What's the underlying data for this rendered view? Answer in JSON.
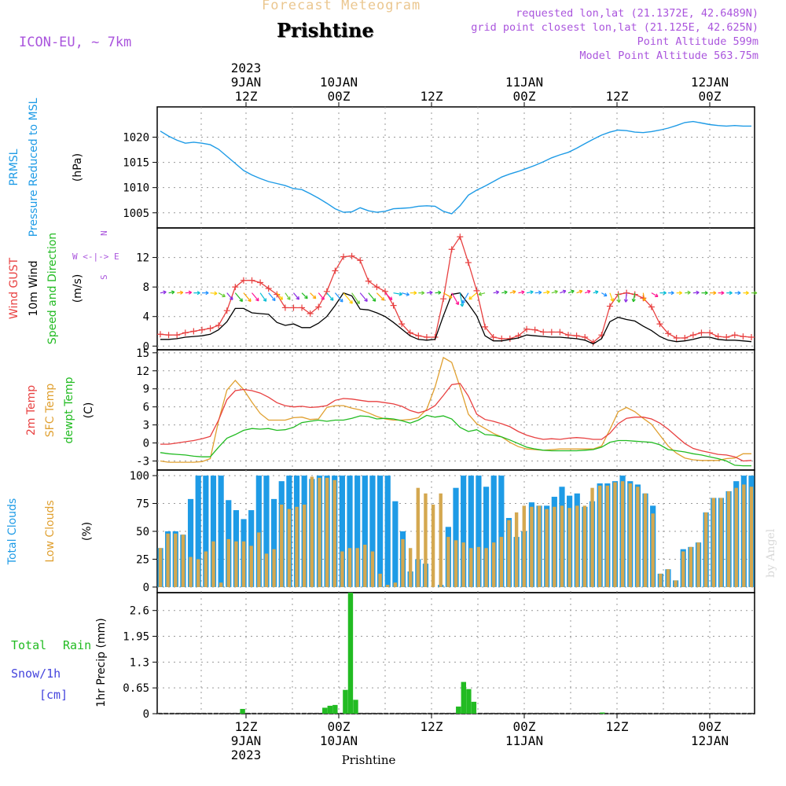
{
  "header": {
    "subtitle": "Forecast Meteogram",
    "location": "Prishtine",
    "model": "ICON-EU, ~ 7km",
    "requested": "requested lon,lat (21.1372E, 42.6489N)",
    "grid_point": "grid point closest lon,lat (21.125E, 42.625N)",
    "point_altitude": "Point Altitude 599m",
    "model_altitude": "Model Point Altitude 563.75m",
    "footer": "Prishtine",
    "watermark": "by Angel"
  },
  "colors": {
    "pressure": "#1e9be6",
    "gust": "#e84040",
    "wind": "#000000",
    "direction": "#22bb22",
    "temp2m": "#e84040",
    "sfc": "#e0a030",
    "dewpt": "#22bb22",
    "total_clouds": "#1e9be6",
    "low_clouds": "#d4a850",
    "precip": "#22bb22",
    "snow_label": "#4444dd",
    "header_accent": "#aa55dd",
    "subtitle": "#ebc790"
  },
  "time_axis": {
    "top_labels": [
      {
        "lines": [
          "2023",
          "9JAN",
          "12Z"
        ]
      },
      {
        "lines": [
          "10JAN",
          "00Z"
        ]
      },
      {
        "lines": [
          "12Z"
        ]
      },
      {
        "lines": [
          "11JAN",
          "00Z"
        ]
      },
      {
        "lines": [
          "12Z"
        ]
      },
      {
        "lines": [
          "12JAN",
          "00Z"
        ]
      }
    ],
    "bottom_labels": [
      {
        "lines": [
          "12Z",
          "9JAN",
          "2023"
        ]
      },
      {
        "lines": [
          "00Z",
          "10JAN"
        ]
      },
      {
        "lines": [
          "12Z"
        ]
      },
      {
        "lines": [
          "00Z",
          "11JAN"
        ]
      },
      {
        "lines": [
          "12Z"
        ]
      },
      {
        "lines": [
          "00Z",
          "12JAN"
        ]
      }
    ]
  },
  "chart_data": [
    {
      "type": "line",
      "title": "PRMSL Pressure Reduced to MSL",
      "ylabel_lines": [
        "PRMSL",
        "Pressure Reduced to MSL"
      ],
      "unit": "(hPa)",
      "ylim": [
        1002,
        1026
      ],
      "yticks": [
        1005,
        1010,
        1015,
        1020
      ],
      "series": [
        {
          "name": "PRMSL",
          "values": [
            1021.2,
            1020.2,
            1019.4,
            1018.8,
            1019.0,
            1018.8,
            1018.5,
            1017.6,
            1016.2,
            1014.8,
            1013.4,
            1012.5,
            1011.8,
            1011.2,
            1010.8,
            1010.4,
            1009.8,
            1009.6,
            1008.8,
            1007.9,
            1006.9,
            1005.8,
            1005.1,
            1005.2,
            1006.0,
            1005.4,
            1005.1,
            1005.3,
            1005.8,
            1005.9,
            1006.0,
            1006.3,
            1006.4,
            1006.3,
            1005.3,
            1004.8,
            1006.4,
            1008.5,
            1009.5,
            1010.3,
            1011.2,
            1012.1,
            1012.7,
            1013.2,
            1013.8,
            1014.4,
            1015.1,
            1015.9,
            1016.5,
            1017.0,
            1017.8,
            1018.7,
            1019.6,
            1020.4,
            1021.0,
            1021.4,
            1021.3,
            1021.0,
            1020.9,
            1021.1,
            1021.4,
            1021.8,
            1022.3,
            1022.9,
            1023.1,
            1022.8,
            1022.5,
            1022.3,
            1022.2,
            1022.3,
            1022.2,
            1022.2
          ]
        }
      ]
    },
    {
      "type": "line",
      "title": "Wind GUST / 10m Wind Speed and Direction",
      "ylabel_lines": [
        "Wind GUST",
        "10m Wind",
        "Speed and Direction"
      ],
      "unit": "(m/s)",
      "ylim": [
        -0.5,
        16
      ],
      "yticks": [
        0,
        4,
        8,
        12
      ],
      "compass": "N / W <-|-> E / S",
      "series": [
        {
          "name": "Wind GUST",
          "values": [
            1.6,
            1.5,
            1.5,
            1.8,
            2.0,
            2.2,
            2.4,
            2.8,
            4.8,
            8.0,
            8.9,
            8.9,
            8.6,
            7.8,
            7.0,
            5.2,
            5.2,
            5.2,
            4.4,
            5.3,
            7.4,
            10.2,
            12.1,
            12.2,
            11.6,
            8.8,
            8.0,
            7.4,
            5.5,
            3.0,
            1.8,
            1.4,
            1.2,
            1.2,
            6.4,
            13.1,
            14.8,
            11.3,
            7.5,
            2.6,
            1.2,
            1.0,
            1.0,
            1.4,
            2.3,
            2.2,
            1.9,
            1.9,
            1.9,
            1.5,
            1.4,
            1.2,
            0.5,
            1.5,
            5.4,
            7.0,
            7.2,
            7.0,
            6.5,
            5.3,
            3.0,
            1.7,
            1.1,
            1.1,
            1.5,
            1.8,
            1.8,
            1.3,
            1.2,
            1.5,
            1.3,
            1.2
          ]
        },
        {
          "name": "10m Wind",
          "values": [
            0.9,
            0.9,
            1.0,
            1.2,
            1.3,
            1.4,
            1.6,
            2.2,
            3.3,
            5.1,
            5.1,
            4.5,
            4.4,
            4.3,
            3.2,
            2.8,
            3.0,
            2.5,
            2.5,
            3.1,
            4.0,
            5.5,
            7.2,
            6.8,
            5.0,
            4.9,
            4.5,
            4.0,
            3.2,
            2.3,
            1.4,
            0.9,
            0.8,
            0.9,
            4.1,
            7.0,
            7.2,
            5.7,
            4.1,
            1.4,
            0.7,
            0.7,
            0.9,
            1.1,
            1.5,
            1.4,
            1.3,
            1.2,
            1.2,
            1.1,
            1.0,
            0.8,
            0.3,
            1.0,
            3.3,
            3.9,
            3.6,
            3.4,
            2.7,
            2.1,
            1.3,
            0.8,
            0.6,
            0.7,
            0.9,
            1.2,
            1.2,
            0.9,
            0.8,
            0.8,
            0.7,
            0.6
          ]
        }
      ],
      "wind_barbs": {
        "direction_deg": [
          260,
          260,
          265,
          265,
          270,
          270,
          275,
          300,
          320,
          320,
          320,
          320,
          325,
          320,
          320,
          325,
          320,
          315,
          315,
          320,
          320,
          320,
          320,
          325,
          320,
          320,
          315,
          315,
          280,
          285,
          270,
          270,
          265,
          265,
          300,
          330,
          350,
          30,
          50,
          75,
          260,
          260,
          255,
          260,
          260,
          265,
          260,
          255,
          250,
          250,
          250,
          250,
          255,
          300,
          340,
          355,
          5,
          10,
          350,
          300,
          270,
          270,
          270,
          265,
          265,
          270,
          270,
          270,
          270,
          270,
          270,
          270
        ],
        "colors": [
          "#8a2be2",
          "#22bb22",
          "#ffa500",
          "#ff1493",
          "#00bcd4",
          "#1e90ff",
          "#ffcc00",
          "#66cc33"
        ]
      }
    },
    {
      "type": "line",
      "title": "2m Temp / SFC Temp / dewpt Temp",
      "ylabel_lines": [
        "2m Temp",
        "SFC Temp",
        "dewpt Temp"
      ],
      "unit": "(C)",
      "ylim": [
        -4.5,
        15.5
      ],
      "yticks": [
        -3,
        0,
        3,
        6,
        9,
        12,
        15
      ],
      "series": [
        {
          "name": "2m Temp",
          "values": [
            -0.2,
            -0.2,
            0.0,
            0.2,
            0.4,
            0.7,
            1.1,
            3.8,
            7.2,
            8.7,
            8.9,
            8.7,
            8.3,
            7.6,
            6.7,
            6.2,
            6.0,
            6.1,
            5.9,
            6.0,
            6.2,
            7.1,
            7.4,
            7.3,
            7.1,
            6.9,
            6.9,
            6.7,
            6.5,
            6.1,
            5.4,
            5.0,
            5.4,
            6.2,
            7.9,
            9.7,
            9.9,
            7.8,
            4.8,
            3.9,
            3.6,
            3.2,
            2.7,
            1.9,
            1.3,
            0.9,
            0.6,
            0.7,
            0.6,
            0.8,
            0.9,
            0.8,
            0.6,
            0.6,
            1.6,
            3.2,
            4.1,
            4.3,
            4.3,
            4.0,
            3.3,
            2.3,
            1.1,
            -0.1,
            -0.9,
            -1.3,
            -1.6,
            -1.9,
            -2.0,
            -2.3,
            -3.0,
            -2.9
          ]
        },
        {
          "name": "SFC Temp",
          "values": [
            -3.0,
            -3.2,
            -3.2,
            -3.2,
            -3.2,
            -3.1,
            -2.6,
            3.7,
            8.8,
            10.4,
            8.9,
            6.8,
            4.9,
            3.8,
            3.8,
            3.8,
            4.2,
            4.3,
            3.9,
            4.0,
            5.9,
            6.2,
            6.2,
            5.8,
            5.5,
            5.0,
            4.4,
            4.0,
            3.8,
            3.8,
            3.9,
            4.2,
            5.6,
            9.3,
            14.2,
            13.4,
            9.3,
            4.8,
            3.2,
            2.4,
            1.6,
            1.0,
            0.1,
            -0.6,
            -1.0,
            -1.1,
            -1.2,
            -1.1,
            -1.0,
            -1.0,
            -1.0,
            -1.0,
            -1.0,
            -0.5,
            2.2,
            5.2,
            5.9,
            5.2,
            4.1,
            3.1,
            1.3,
            -0.5,
            -1.7,
            -2.5,
            -2.8,
            -2.9,
            -2.9,
            -2.9,
            -2.6,
            -2.5,
            -1.8,
            -1.8
          ]
        },
        {
          "name": "dewpt Temp",
          "values": [
            -1.6,
            -1.8,
            -1.9,
            -2.0,
            -2.2,
            -2.3,
            -2.3,
            -0.7,
            0.8,
            1.4,
            2.1,
            2.4,
            2.3,
            2.4,
            2.1,
            2.2,
            2.6,
            3.4,
            3.6,
            3.8,
            3.6,
            3.8,
            3.8,
            4.1,
            4.5,
            4.4,
            4.0,
            4.1,
            4.0,
            3.7,
            3.3,
            3.8,
            4.6,
            4.3,
            4.5,
            4.0,
            2.6,
            1.9,
            2.2,
            1.4,
            1.3,
            1.0,
            0.5,
            -0.1,
            -0.7,
            -1.0,
            -1.2,
            -1.3,
            -1.3,
            -1.3,
            -1.3,
            -1.2,
            -1.1,
            -0.7,
            0.1,
            0.4,
            0.4,
            0.3,
            0.2,
            0.1,
            -0.3,
            -1.1,
            -1.3,
            -1.5,
            -1.8,
            -2.0,
            -2.3,
            -2.6,
            -3.0,
            -3.7,
            -3.8,
            -3.8
          ]
        }
      ]
    },
    {
      "type": "bar",
      "title": "Total Clouds / Low Clouds",
      "ylabel_lines": [
        "Total Clouds",
        "Low Clouds"
      ],
      "unit": "(%)",
      "ylim": [
        -5,
        105
      ],
      "yticks": [
        0,
        25,
        50,
        75,
        100
      ],
      "series": [
        {
          "name": "Total Clouds",
          "values": [
            35,
            50,
            50,
            47,
            79,
            100,
            100,
            100,
            100,
            78,
            69,
            61,
            69,
            100,
            100,
            79,
            95,
            100,
            100,
            100,
            97,
            100,
            100,
            100,
            100,
            100,
            100,
            100,
            100,
            100,
            100,
            77,
            50,
            14,
            25,
            21,
            0,
            2,
            54,
            89,
            100,
            100,
            100,
            90,
            100,
            100,
            62,
            45,
            50,
            76,
            73,
            73,
            81,
            90,
            82,
            84,
            72,
            77,
            93,
            93,
            95,
            100,
            95,
            92,
            84,
            73,
            12,
            16,
            6,
            34,
            36,
            40,
            67,
            80,
            80,
            86,
            95,
            100,
            100
          ]
        },
        {
          "name": "Low Clouds",
          "values": [
            35,
            48,
            48,
            47,
            27,
            25,
            32,
            41,
            4,
            43,
            41,
            41,
            37,
            49,
            30,
            34,
            74,
            70,
            72,
            74,
            99,
            98,
            98,
            96,
            32,
            35,
            35,
            38,
            32,
            12,
            2,
            4,
            43,
            35,
            89,
            84,
            74,
            84,
            45,
            42,
            40,
            35,
            36,
            35,
            40,
            45,
            60,
            67,
            73,
            72,
            73,
            70,
            72,
            73,
            71,
            73,
            73,
            89,
            91,
            91,
            94,
            95,
            93,
            90,
            84,
            66,
            12,
            16,
            6,
            32,
            36,
            40,
            67,
            80,
            80,
            86,
            89,
            92,
            90
          ]
        }
      ]
    },
    {
      "type": "bar",
      "title": "1hr Precip (mm)",
      "ylabel_lines": [
        "Total Rain",
        "Snow/1h",
        "[cm]"
      ],
      "unit": "1hr Precip (mm)",
      "ylim": [
        0,
        3.05
      ],
      "yticks": [
        0,
        0.65,
        1.3,
        1.95,
        2.6
      ],
      "series": [
        {
          "name": "Total Rain",
          "values": [
            0,
            0,
            0,
            0,
            0,
            0,
            0,
            0,
            0,
            0,
            0,
            0,
            0,
            0,
            0,
            0,
            0.12,
            0,
            0,
            0,
            0,
            0,
            0,
            0,
            0,
            0,
            0,
            0,
            0,
            0,
            0,
            0,
            0.15,
            0.2,
            0.22,
            0,
            0.6,
            3.05,
            0.35,
            0,
            0,
            0,
            0,
            0,
            0,
            0,
            0,
            0,
            0,
            0,
            0,
            0,
            0,
            0,
            0,
            0,
            0,
            0,
            0.18,
            0.8,
            0.62,
            0.3,
            0,
            0,
            0,
            0,
            0,
            0,
            0,
            0,
            0,
            0,
            0,
            0,
            0,
            0,
            0,
            0,
            0,
            0,
            0,
            0,
            0,
            0,
            0,
            0,
            0.03,
            0,
            0,
            0,
            0,
            0,
            0,
            0,
            0,
            0,
            0,
            0,
            0,
            0,
            0,
            0,
            0,
            0,
            0,
            0,
            0,
            0,
            0,
            0,
            0,
            0,
            0,
            0,
            0,
            0
          ]
        }
      ]
    }
  ]
}
